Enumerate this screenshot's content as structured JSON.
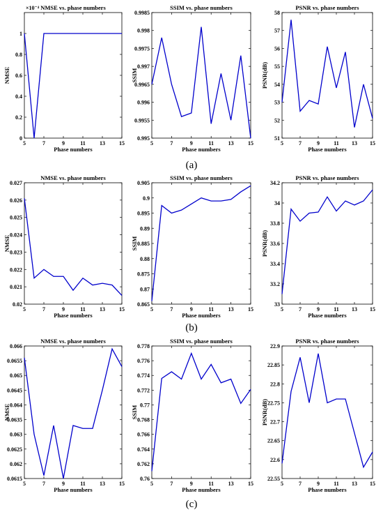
{
  "figure": {
    "panel_labels": [
      "(a)",
      "(b)",
      "(c)"
    ],
    "line_color": "#0000cc"
  },
  "chart_data": [
    {
      "type": "line",
      "title": "NMSE vs. phase numbers",
      "xlabel": "Phase numbers",
      "ylabel": "NMSE",
      "x": [
        5,
        6,
        7,
        8,
        9,
        10,
        11,
        12,
        13,
        14,
        15
      ],
      "series": [
        {
          "values": [
            1,
            0,
            1,
            1,
            1,
            1,
            1,
            1,
            1,
            1,
            1
          ]
        }
      ],
      "xlim": [
        5,
        15
      ],
      "ylim": [
        0,
        1.2
      ],
      "xticks": [
        "5",
        "7",
        "9",
        "11",
        "13",
        "15"
      ],
      "yticks": [
        "0",
        "0.2",
        "0.4",
        "0.6",
        "0.8",
        "1"
      ],
      "exponent_label": "×10⁻⁴"
    },
    {
      "type": "line",
      "title": "SSIM vs. phase numbers",
      "xlabel": "Phase numbers",
      "ylabel": "SSIM",
      "x": [
        5,
        6,
        7,
        8,
        9,
        10,
        11,
        12,
        13,
        14,
        15
      ],
      "series": [
        {
          "values": [
            0.9965,
            0.9978,
            0.9965,
            0.9956,
            0.9957,
            0.9981,
            0.9954,
            0.9968,
            0.9955,
            0.9973,
            0.995
          ]
        }
      ],
      "xlim": [
        5,
        15
      ],
      "ylim": [
        0.995,
        0.9985
      ],
      "xticks": [
        "5",
        "7",
        "9",
        "11",
        "13",
        "15"
      ],
      "yticks": [
        "0.995",
        "0.9955",
        "0.996",
        "0.9965",
        "0.997",
        "0.9975",
        "0.998",
        "0.9985"
      ]
    },
    {
      "type": "line",
      "title": "PSNR vs. phase numbers",
      "xlabel": "Phase numbers",
      "ylabel": "PSNR(dB)",
      "x": [
        5,
        6,
        7,
        8,
        9,
        10,
        11,
        12,
        13,
        14,
        15
      ],
      "series": [
        {
          "values": [
            53.0,
            57.6,
            52.5,
            53.1,
            52.9,
            56.1,
            53.8,
            55.8,
            51.6,
            54.0,
            52.1
          ]
        }
      ],
      "xlim": [
        5,
        15
      ],
      "ylim": [
        51,
        58
      ],
      "xticks": [
        "5",
        "7",
        "9",
        "11",
        "13",
        "15"
      ],
      "yticks": [
        "51",
        "52",
        "53",
        "54",
        "55",
        "56",
        "57",
        "58"
      ]
    },
    {
      "type": "line",
      "title": "NMSE vs. phase numbers",
      "xlabel": "Phase numbers",
      "ylabel": "NMSE",
      "x": [
        5,
        6,
        7,
        8,
        9,
        10,
        11,
        12,
        13,
        14,
        15
      ],
      "series": [
        {
          "values": [
            0.0261,
            0.0215,
            0.022,
            0.0216,
            0.0216,
            0.0208,
            0.0215,
            0.0211,
            0.0212,
            0.0211,
            0.0205
          ]
        }
      ],
      "xlim": [
        5,
        15
      ],
      "ylim": [
        0.02,
        0.027
      ],
      "xticks": [
        "5",
        "7",
        "9",
        "11",
        "13",
        "15"
      ],
      "yticks": [
        "0.02",
        "0.021",
        "0.022",
        "0.023",
        "0.024",
        "0.025",
        "0.026",
        "0.027"
      ]
    },
    {
      "type": "line",
      "title": "SSIM vs. phase numbers",
      "xlabel": "Phase numbers",
      "ylabel": "SSIM",
      "x": [
        5,
        6,
        7,
        8,
        9,
        10,
        11,
        12,
        13,
        14,
        15
      ],
      "series": [
        {
          "values": [
            0.866,
            0.8975,
            0.895,
            0.896,
            0.898,
            0.9,
            0.899,
            0.899,
            0.8995,
            0.902,
            0.904
          ]
        }
      ],
      "xlim": [
        5,
        15
      ],
      "ylim": [
        0.865,
        0.905
      ],
      "xticks": [
        "5",
        "7",
        "9",
        "11",
        "13",
        "15"
      ],
      "yticks": [
        "0.865",
        "0.87",
        "0.875",
        "0.88",
        "0.885",
        "0.89",
        "0.895",
        "0.9",
        "0.905"
      ]
    },
    {
      "type": "line",
      "title": "PSNR vs. phase numbers",
      "xlabel": "Phase numbers",
      "ylabel": "PSNR(dB)",
      "x": [
        5,
        6,
        7,
        8,
        9,
        10,
        11,
        12,
        13,
        14,
        15
      ],
      "series": [
        {
          "values": [
            33.1,
            33.94,
            33.82,
            33.9,
            33.91,
            34.06,
            33.92,
            34.02,
            33.98,
            34.02,
            34.13
          ]
        }
      ],
      "xlim": [
        5,
        15
      ],
      "ylim": [
        33,
        34.2
      ],
      "xticks": [
        "5",
        "7",
        "9",
        "11",
        "13",
        "15"
      ],
      "yticks": [
        "33",
        "33.2",
        "33.4",
        "33.6",
        "33.8",
        "34",
        "34.2"
      ]
    },
    {
      "type": "line",
      "title": "NMSE vs. phase numbers",
      "xlabel": "Phase numbers",
      "ylabel": "NMSE",
      "x": [
        5,
        6,
        7,
        8,
        9,
        10,
        11,
        12,
        13,
        14,
        15
      ],
      "series": [
        {
          "values": [
            0.0656,
            0.063,
            0.0616,
            0.0633,
            0.0615,
            0.0633,
            0.0632,
            0.0632,
            0.0645,
            0.0659,
            0.0653
          ]
        }
      ],
      "xlim": [
        5,
        15
      ],
      "ylim": [
        0.0615,
        0.066
      ],
      "xticks": [
        "5",
        "7",
        "9",
        "11",
        "13",
        "15"
      ],
      "yticks": [
        "0.0615",
        "0.062",
        "0.0625",
        "0.063",
        "0.0635",
        "0.064",
        "0.0645",
        "0.065",
        "0.0655",
        "0.066"
      ]
    },
    {
      "type": "line",
      "title": "SSIM vs. phase numbers",
      "xlabel": "Phase numbers",
      "ylabel": "SSIM",
      "x": [
        5,
        6,
        7,
        8,
        9,
        10,
        11,
        12,
        13,
        14,
        15
      ],
      "series": [
        {
          "values": [
            0.761,
            0.7736,
            0.7745,
            0.7735,
            0.777,
            0.7735,
            0.7755,
            0.773,
            0.7735,
            0.7702,
            0.7721
          ]
        }
      ],
      "xlim": [
        5,
        15
      ],
      "ylim": [
        0.76,
        0.778
      ],
      "xticks": [
        "5",
        "7",
        "9",
        "11",
        "13",
        "15"
      ],
      "yticks": [
        "0.76",
        "0.762",
        "0.764",
        "0.766",
        "0.768",
        "0.77",
        "0.772",
        "0.774",
        "0.776",
        "0.778"
      ]
    },
    {
      "type": "line",
      "title": "PSNR vs. phase numbers",
      "xlabel": "Phase numbers",
      "ylabel": "PSNR(dB)",
      "x": [
        5,
        6,
        7,
        8,
        9,
        10,
        11,
        12,
        13,
        14,
        15
      ],
      "series": [
        {
          "values": [
            22.59,
            22.78,
            22.87,
            22.75,
            22.88,
            22.75,
            22.76,
            22.76,
            22.67,
            22.58,
            22.62
          ]
        }
      ],
      "xlim": [
        5,
        15
      ],
      "ylim": [
        22.55,
        22.9
      ],
      "xticks": [
        "5",
        "7",
        "9",
        "11",
        "13",
        "15"
      ],
      "yticks": [
        "22.55",
        "22.6",
        "22.65",
        "22.7",
        "22.75",
        "22.8",
        "22.85",
        "22.9"
      ]
    }
  ]
}
